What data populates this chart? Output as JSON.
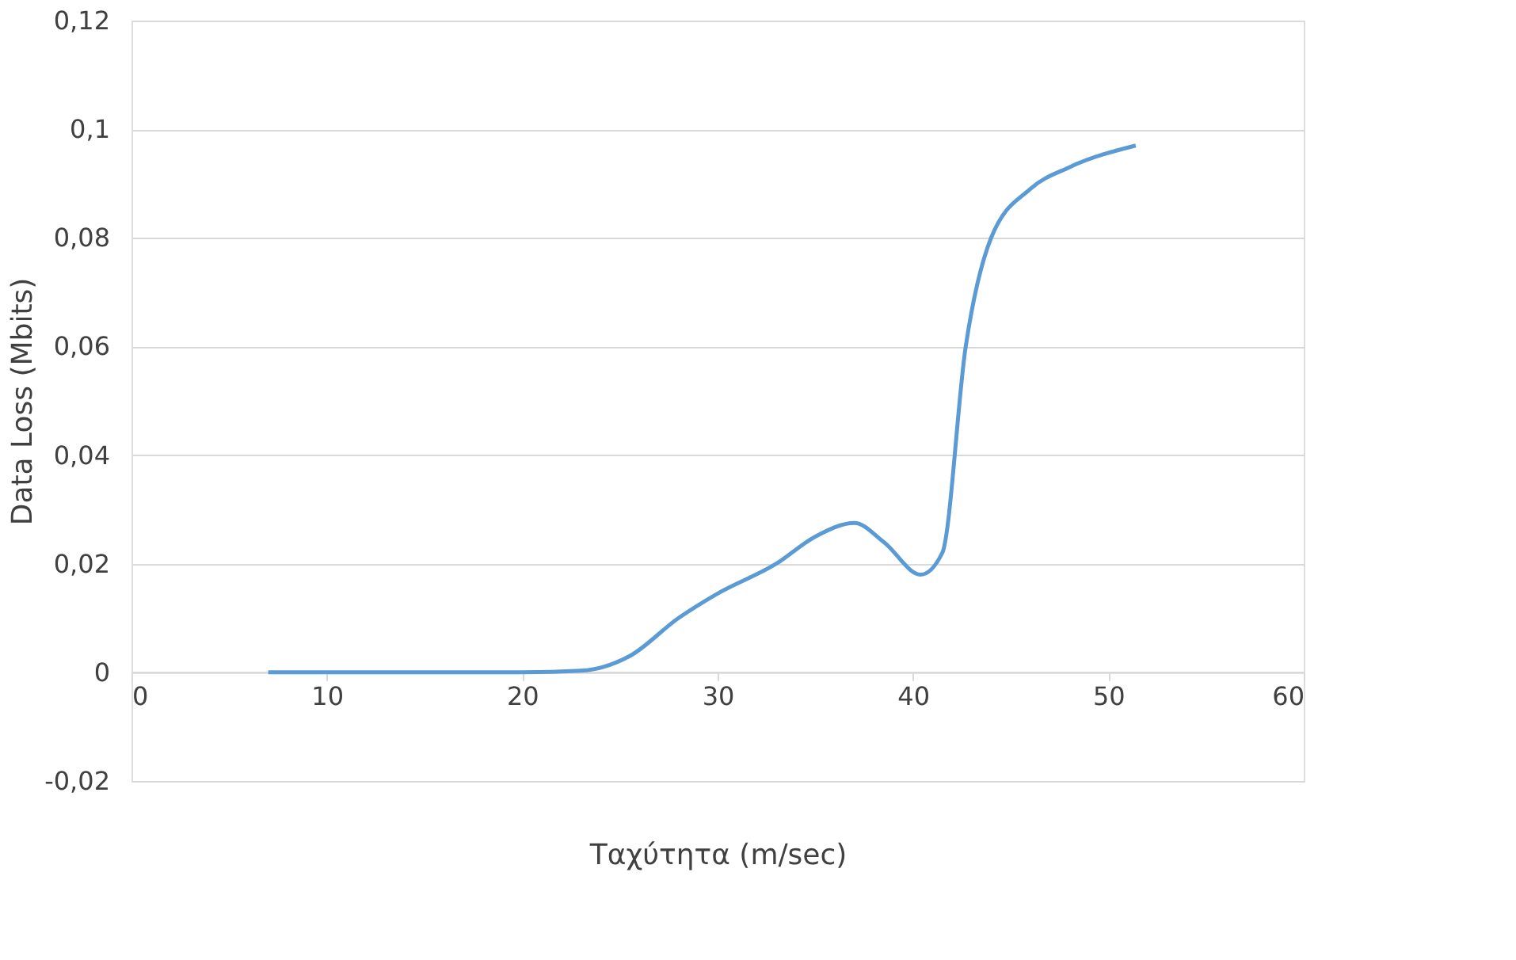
{
  "chart_data": {
    "type": "line",
    "xlabel": "Ταχύτητα (m/sec)",
    "ylabel": "Data Loss (Mbits)",
    "x": [
      7,
      15,
      20,
      23,
      25.5,
      28,
      30,
      33,
      35,
      37,
      38.5,
      40.4,
      41.5,
      42.7,
      44,
      46,
      48,
      51.4
    ],
    "series": [
      {
        "color": "#5b9bd5",
        "values": [
          0,
          0,
          0,
          0.0003,
          0.003,
          0.01,
          0.0145,
          0.02,
          0.025,
          0.0275,
          0.024,
          0.018,
          0.022,
          0.06,
          0.08,
          0.089,
          0.093,
          0.097
        ]
      }
    ],
    "xlim": [
      0,
      60
    ],
    "xticks": [
      0,
      10,
      20,
      30,
      40,
      50,
      60
    ],
    "ylim": [
      -0.02,
      0.12
    ],
    "yticks": [
      {
        "value": -0.02,
        "label": "-0,02"
      },
      0,
      {
        "value": 0.02,
        "label": "0,02"
      },
      {
        "value": 0.04,
        "label": "0,04"
      },
      {
        "value": 0.06,
        "label": "0,06"
      },
      {
        "value": 0.08,
        "label": "0,08"
      },
      {
        "value": 0.1,
        "label": "0,1"
      },
      {
        "value": 0.12,
        "label": "0,12"
      }
    ],
    "grid": "y",
    "marker": "none",
    "line_style": "solid"
  }
}
